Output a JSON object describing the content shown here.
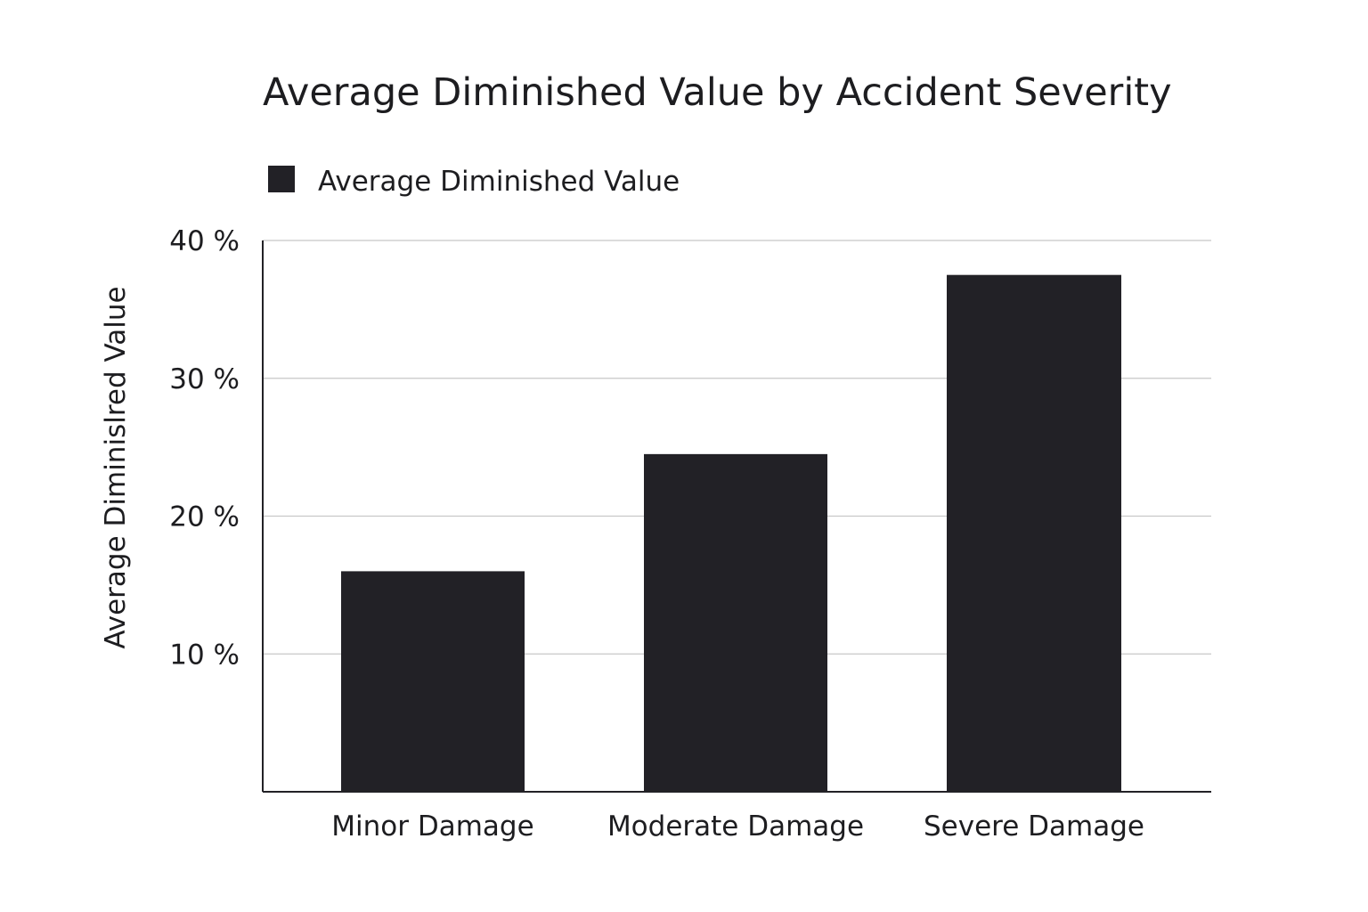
{
  "chart_data": {
    "type": "bar",
    "title": "Average Diminished Value by Accident Severity",
    "xlabel": "",
    "ylabel": "Average Diminislred Value",
    "categories": [
      "Minor Damage",
      "Moderate Damage",
      "Severe Damage"
    ],
    "series": [
      {
        "name": "Average Diminished Value",
        "values": [
          16,
          24.5,
          37.5
        ]
      }
    ],
    "ylim": [
      0,
      40
    ],
    "yticks": [
      10,
      20,
      30,
      40
    ],
    "ytick_labels": [
      "10 %",
      "20 %",
      "30 %",
      "40 %"
    ],
    "grid": true,
    "legend_position": "top-left",
    "colors": {
      "bar": "#222126",
      "grid": "#c8c8c8",
      "axis": "#222126",
      "text": "#1d1d20"
    }
  }
}
